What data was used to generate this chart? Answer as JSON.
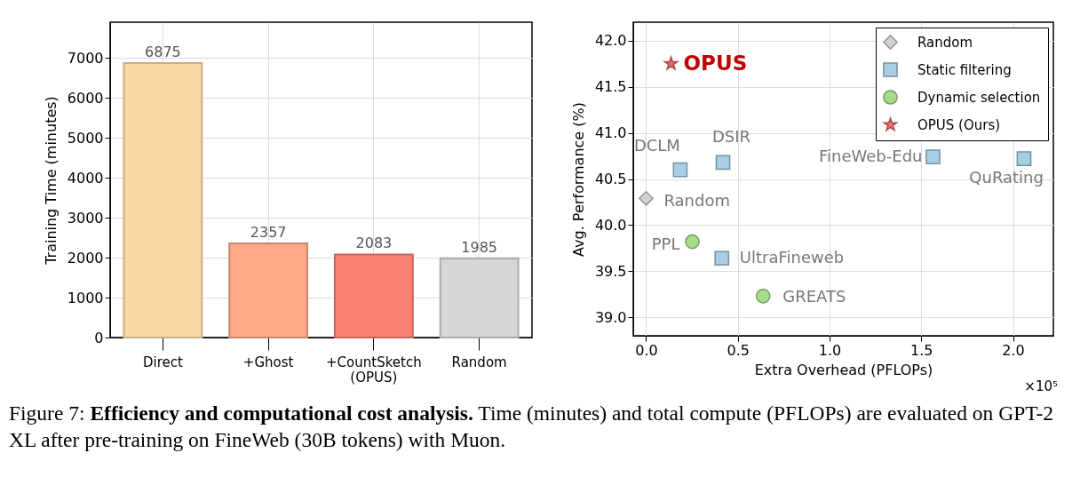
{
  "chart_data": [
    {
      "type": "bar",
      "categories": [
        "Direct",
        "+Ghost",
        "+CountSketch\n(OPUS)",
        "Random"
      ],
      "values": [
        6875,
        2357,
        2083,
        1985
      ],
      "colors": [
        "#fbd9a6",
        "#fca98a",
        "#fa8072",
        "#d6d6d6"
      ],
      "ylabel": "Training Time (minutes)",
      "ylim": [
        0,
        7900
      ],
      "yticks": [
        0,
        1000,
        2000,
        3000,
        4000,
        5000,
        6000,
        7000
      ],
      "grid": true,
      "data_labels": true,
      "annotations": [
        "Figure 7: ",
        "Efficiency and computational cost analysis.",
        " Time (minutes) and total compute (PFLOPs) are evaluated on GPT-2 XL after pre-training on FineWeb (30B tokens) with Muon."
      ]
    },
    {
      "type": "scatter",
      "xlabel": "Extra Overhead (PFLOPs)",
      "ylabel": "Avg. Performance (%)",
      "xlim": [
        -0.07,
        2.22
      ],
      "xticks": [
        {
          "value": 0,
          "label": "0.0"
        },
        0.5,
        {
          "value": 1,
          "label": "1.0"
        },
        1.5,
        {
          "value": 2,
          "label": "2.0"
        }
      ],
      "ylim": [
        38.8,
        42.2
      ],
      "yticks": [
        {
          "value": 39,
          "label": "39.0"
        },
        39.5,
        {
          "value": 40,
          "label": "40.0"
        },
        40.5,
        {
          "value": 41,
          "label": "41.0"
        },
        41.5,
        {
          "value": 42,
          "label": "42.0"
        }
      ],
      "grid": true,
      "legend": "top right",
      "series": [
        {
          "name": "Random",
          "color": "#d3d3d3",
          "marker": "diamond",
          "x": [
            0
          ],
          "values": [
            40.29
          ]
        },
        {
          "name": "Static filtering",
          "color": "#a6cfe5",
          "marker": "square",
          "x": [
            0.186,
            0.419,
            1.564,
            2.06,
            0.413
          ],
          "values": [
            40.6,
            40.68,
            40.74,
            40.72,
            39.64
          ]
        },
        {
          "name": "Dynamic selection",
          "color": "#a8dc8a",
          "marker": "circle",
          "x": [
            0.252,
            0.638
          ],
          "values": [
            39.82,
            39.23
          ]
        },
        {
          "name": "OPUS (Ours)",
          "color": "#f26b6b",
          "marker": "star",
          "x": [
            0.136
          ],
          "values": [
            41.75
          ]
        }
      ],
      "annotations": [
        {
          "text": "OPUS",
          "x": 0.136,
          "y": 41.75
        },
        {
          "text": "Random",
          "x": 0,
          "y": 40.29
        },
        {
          "text": "DCLM",
          "x": 0.186,
          "y": 40.6
        },
        {
          "text": "DSIR",
          "x": 0.419,
          "y": 40.68
        },
        {
          "text": "FineWeb-Edu",
          "x": 1.564,
          "y": 40.74
        },
        {
          "text": "QuRating",
          "x": 2.06,
          "y": 40.72
        },
        {
          "text": "UltraFineweb",
          "x": 0.413,
          "y": 39.64
        },
        {
          "text": "PPL",
          "x": 0.252,
          "y": 39.82
        },
        {
          "text": "GREATS",
          "x": 0.638,
          "y": 39.23
        },
        "×10⁵"
      ]
    }
  ]
}
